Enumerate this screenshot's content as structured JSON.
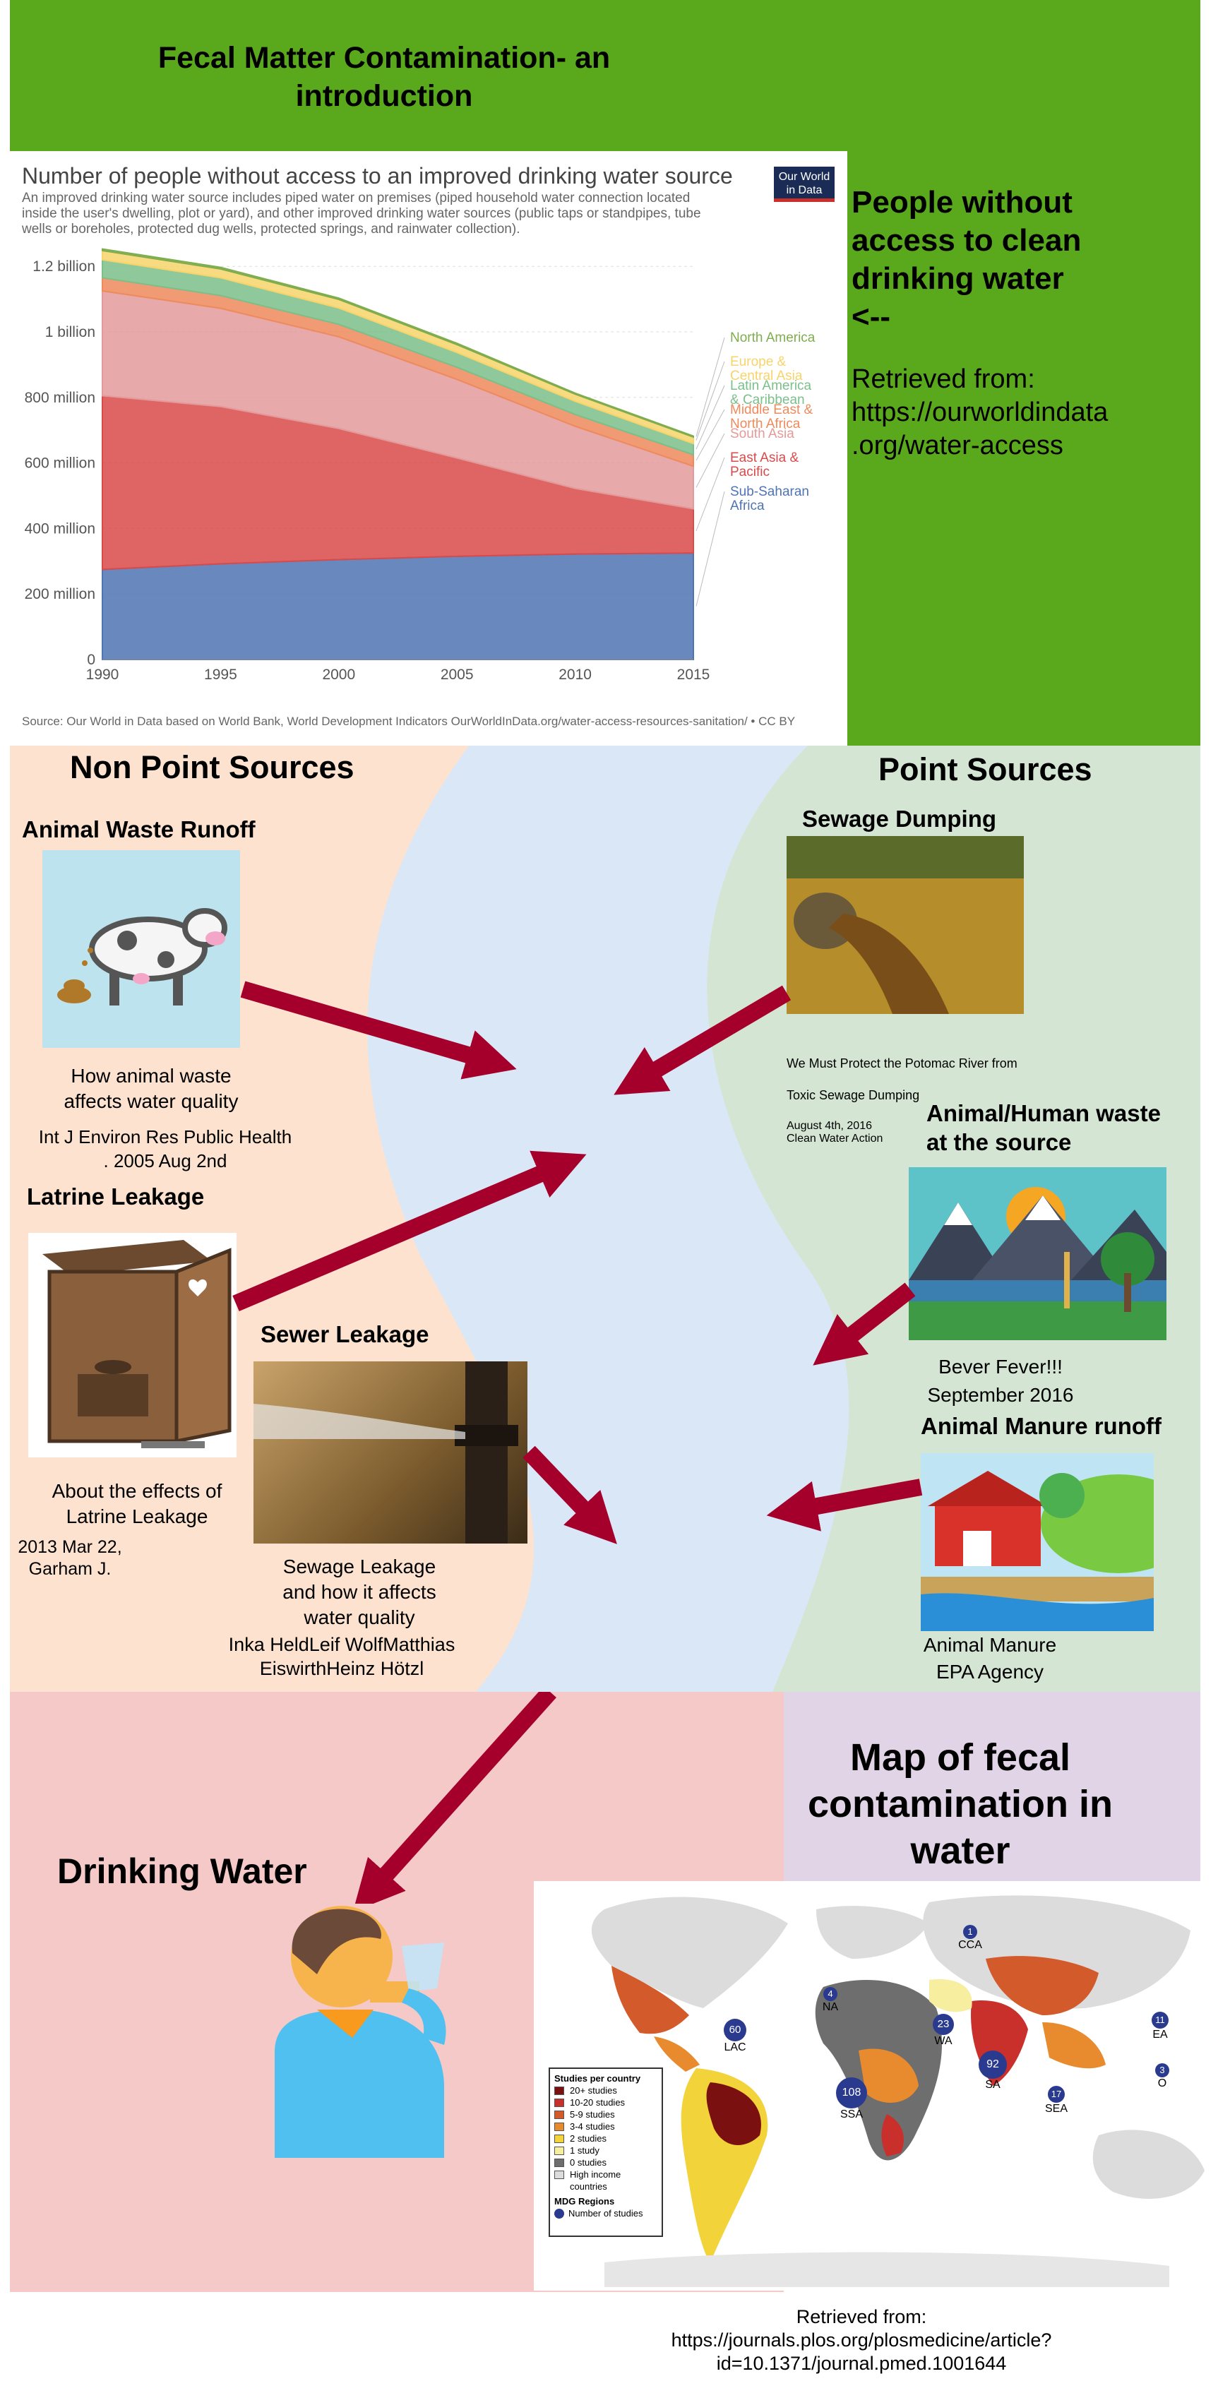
{
  "banner": {
    "title_line1": "Fecal Matter Contamination- an",
    "title_line2": "introduction"
  },
  "side_note": {
    "line1": "People without",
    "line2": "access to clean",
    "line3": "drinking water",
    "line4": "<--",
    "retrieved1": "Retrieved from:",
    "retrieved2": "https://ourworldindata",
    "retrieved3": ".org/water-access"
  },
  "chart_panel": {
    "logo_line1": "Our World",
    "logo_line2": "in Data",
    "subtitle_line1": "An improved drinking water source includes piped water on premises (piped household water connection located",
    "subtitle_line2": "inside the user's dwelling, plot or yard), and other improved drinking water sources (public taps or standpipes, tube",
    "subtitle_line3": "wells or boreholes, protected dug wells, protected springs, and rainwater collection).",
    "source": "Source: Our World in Data based on World Bank, World Development Indicators   OurWorldInData.org/water-access-resources-sanitation/ • CC BY"
  },
  "chart_data": {
    "type": "area",
    "title": "Number of people without access to an improved drinking water source",
    "x": [
      1990,
      1995,
      2000,
      2005,
      2010,
      2015
    ],
    "xticks": [
      "1990",
      "1995",
      "2000",
      "2005",
      "2010",
      "2015"
    ],
    "yticks": [
      "0",
      "200 million",
      "400 million",
      "600 million",
      "800 million",
      "1 billion",
      "1.2 billion"
    ],
    "ylim": [
      0,
      1250000000
    ],
    "stacked": true,
    "grid": true,
    "legend": "right",
    "series": [
      {
        "name": "Sub-Saharan Africa",
        "color": "#4f74b3",
        "values": [
          275000000,
          292000000,
          305000000,
          315000000,
          322000000,
          325000000
        ]
      },
      {
        "name": "East Asia & Pacific",
        "color": "#d94a4a",
        "values": [
          530000000,
          480000000,
          400000000,
          300000000,
          200000000,
          135000000
        ]
      },
      {
        "name": "South Asia",
        "color": "#e39a9a",
        "values": [
          320000000,
          300000000,
          280000000,
          240000000,
          190000000,
          130000000
        ]
      },
      {
        "name": "Middle East & North Africa",
        "color": "#ef8a5c",
        "values": [
          40000000,
          39000000,
          38000000,
          37000000,
          36000000,
          35000000
        ]
      },
      {
        "name": "Latin America & Caribbean",
        "color": "#7bbf8a",
        "values": [
          55000000,
          54000000,
          50000000,
          45000000,
          40000000,
          34000000
        ]
      },
      {
        "name": "Europe & Central Asia",
        "color": "#f7d46b",
        "values": [
          28000000,
          27000000,
          26000000,
          24000000,
          22000000,
          20000000
        ]
      },
      {
        "name": "North America",
        "color": "#7fad4e",
        "values": [
          5000000,
          5000000,
          4000000,
          4000000,
          3000000,
          3000000
        ]
      }
    ]
  },
  "sources": {
    "nonpoint_title": "Non Point Sources",
    "point_title": "Point Sources",
    "animal_waste": {
      "title": "Animal Waste Runoff",
      "caption1": "How animal waste",
      "caption2": "affects water quality",
      "ref1": "Int J Environ Res Public Health",
      "ref2": ". 2005 Aug 2nd"
    },
    "latrine": {
      "title": "Latrine Leakage",
      "caption1": "About the effects of",
      "caption2": "Latrine Leakage",
      "ref1": "2013 Mar 22,",
      "ref2": "Garham J."
    },
    "sewer": {
      "title": "Sewer Leakage",
      "caption1": "Sewage Leakage",
      "caption2": "and how it affects",
      "caption3": "water quality",
      "ref1": "Inka HeldLeif WolfMatthias",
      "ref2": "EiswirthHeinz Hötzl"
    },
    "sewage_dumping": {
      "title": "Sewage Dumping",
      "note1": "We Must Protect the Potomac River from",
      "note2": "Toxic Sewage Dumping",
      "note3": "August 4th, 2016",
      "note4": "Clean Water Action"
    },
    "source_waste": {
      "title1": "Animal/Human waste",
      "title2": "at the source",
      "caption1": "Bever Fever!!!",
      "caption2": "September 2016"
    },
    "manure": {
      "title": "Animal Manure runoff",
      "caption1": "Animal Manure",
      "caption2": "EPA Agency"
    }
  },
  "drinking": {
    "title": "Drinking Water"
  },
  "map_section": {
    "title_line1": "Map of fecal",
    "title_line2": "contamination in",
    "title_line3": "water",
    "legend_title": "Studies per country",
    "legend_items": [
      {
        "label": "20+ studies",
        "color": "#7a1010"
      },
      {
        "label": "10-20 studies",
        "color": "#c9302c"
      },
      {
        "label": "5-9 studies",
        "color": "#d35a2a"
      },
      {
        "label": "3-4 studies",
        "color": "#e88a2e"
      },
      {
        "label": "2 studies",
        "color": "#f2d33a"
      },
      {
        "label": "1 study",
        "color": "#f7eea0"
      },
      {
        "label": "0 studies",
        "color": "#6e6e6e"
      },
      {
        "label": "High income",
        "color": "#dcdcdc"
      }
    ],
    "legend_extra": "countries",
    "regions_title": "MDG Regions",
    "regions_item": "Number of studies",
    "regions": [
      {
        "count": "1",
        "label": "CCA"
      },
      {
        "count": "4",
        "label": "NA"
      },
      {
        "count": "60",
        "label": "LAC"
      },
      {
        "count": "23",
        "label": "WA"
      },
      {
        "count": "92",
        "label": "SA"
      },
      {
        "count": "108",
        "label": "SSA"
      },
      {
        "count": "17",
        "label": "SEA"
      },
      {
        "count": "11",
        "label": "EA"
      },
      {
        "count": "3",
        "label": "O"
      }
    ],
    "retrieved1": "Retrieved from:",
    "retrieved2": "https://journals.plos.org/plosmedicine/article?",
    "retrieved3": "id=10.1371/journal.pmed.1001644"
  }
}
